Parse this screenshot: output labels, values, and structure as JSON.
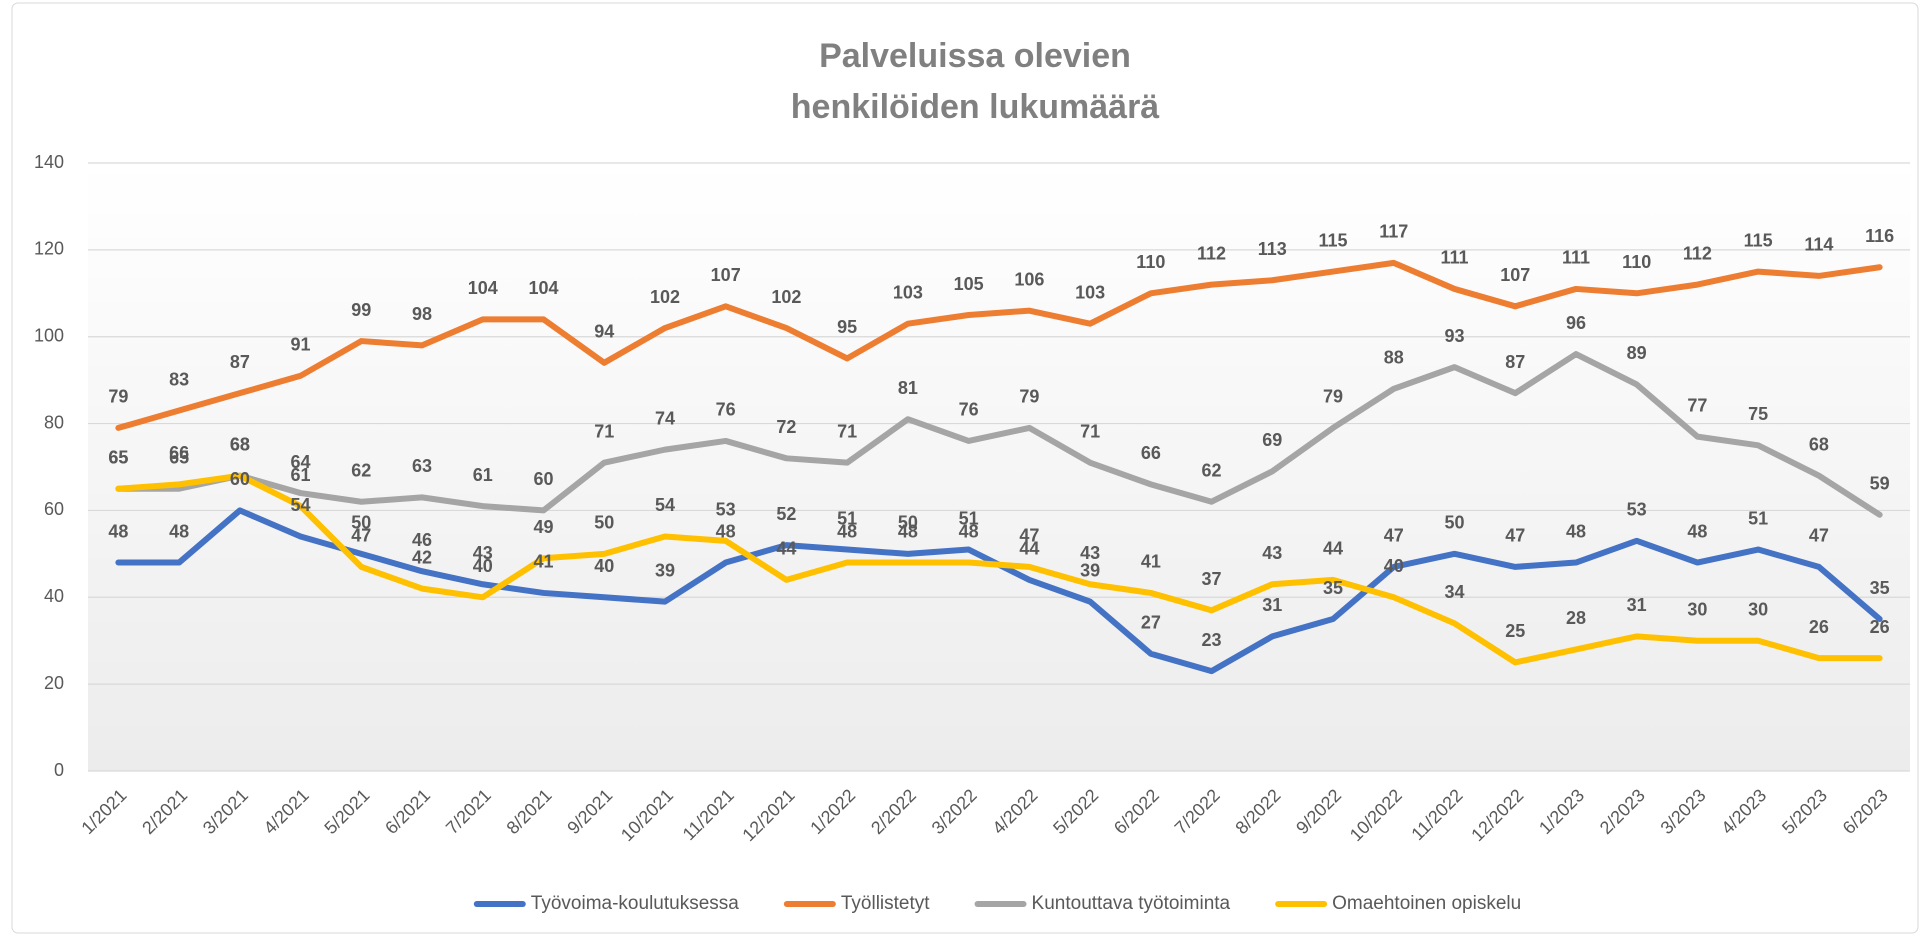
{
  "chart_data": {
    "type": "line",
    "title": [
      "Palveluissa olevien",
      "henkilöiden lukumäärä"
    ],
    "categories": [
      "1/2021",
      "2/2021",
      "3/2021",
      "4/2021",
      "5/2021",
      "6/2021",
      "7/2021",
      "8/2021",
      "9/2021",
      "10/2021",
      "11/2021",
      "12/2021",
      "1/2022",
      "2/2022",
      "3/2022",
      "4/2022",
      "5/2022",
      "6/2022",
      "7/2022",
      "8/2022",
      "9/2022",
      "10/2022",
      "11/2022",
      "12/2022",
      "1/2023",
      "2/2023",
      "3/2023",
      "4/2023",
      "5/2023",
      "6/2023"
    ],
    "series": [
      {
        "name": "Työvoima-koulutuksessa",
        "color": "#4472c4",
        "values": [
          48,
          48,
          60,
          54,
          50,
          46,
          43,
          41,
          40,
          39,
          48,
          52,
          51,
          50,
          51,
          44,
          39,
          27,
          23,
          31,
          35,
          47,
          50,
          47,
          48,
          53,
          48,
          51,
          47,
          35
        ]
      },
      {
        "name": "Työllistetyt",
        "color": "#ed7d31",
        "values": [
          79,
          83,
          87,
          91,
          99,
          98,
          104,
          104,
          94,
          102,
          107,
          102,
          95,
          103,
          105,
          106,
          103,
          110,
          112,
          113,
          115,
          117,
          111,
          107,
          111,
          110,
          112,
          115,
          114,
          116
        ]
      },
      {
        "name": "Kuntouttava työtoiminta",
        "color": "#a5a5a5",
        "values": [
          65,
          65,
          68,
          64,
          62,
          63,
          61,
          60,
          71,
          74,
          76,
          72,
          71,
          81,
          76,
          79,
          71,
          66,
          62,
          69,
          79,
          88,
          93,
          87,
          96,
          89,
          77,
          75,
          68,
          59
        ]
      },
      {
        "name": "Omaehtoinen opiskelu",
        "color": "#ffc000",
        "values": [
          65,
          66,
          68,
          61,
          47,
          42,
          40,
          49,
          50,
          54,
          53,
          44,
          48,
          48,
          48,
          47,
          43,
          41,
          37,
          43,
          44,
          40,
          34,
          25,
          28,
          31,
          30,
          30,
          26,
          26
        ]
      }
    ],
    "ylim": [
      0,
      140
    ],
    "yticks": [
      0,
      20,
      40,
      60,
      80,
      100,
      120,
      140
    ],
    "grid": true,
    "legend": "bottom"
  }
}
